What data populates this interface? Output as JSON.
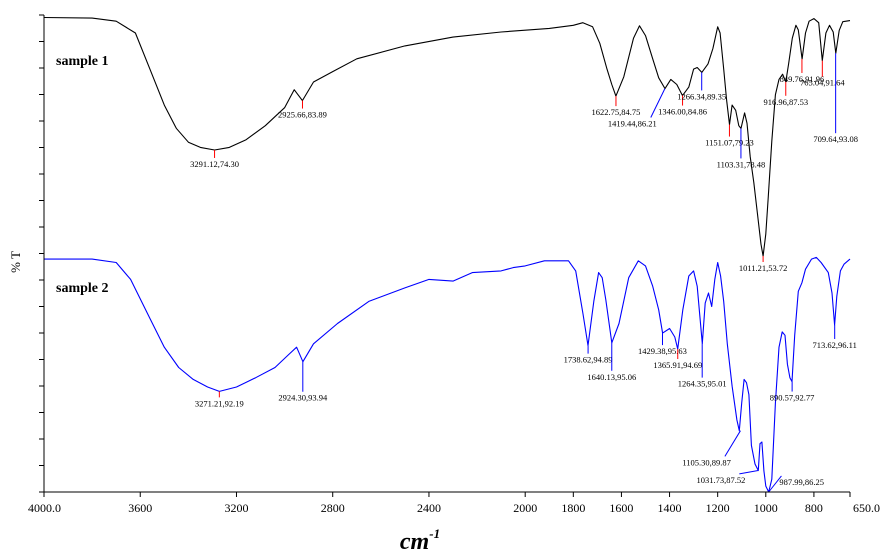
{
  "chart_data": {
    "type": "line",
    "xlabel_base": "cm",
    "xlabel_sup": "-1",
    "ylabel": "% T",
    "xlim": [
      4000.0,
      650.0
    ],
    "x_ticks": [
      {
        "value": 4000,
        "label": "4000.0"
      },
      {
        "value": 3600,
        "label": "3600"
      },
      {
        "value": 3200,
        "label": "3200"
      },
      {
        "value": 2800,
        "label": "2800"
      },
      {
        "value": 2400,
        "label": "2400"
      },
      {
        "value": 2000,
        "label": "2000"
      },
      {
        "value": 1800,
        "label": "1800"
      },
      {
        "value": 1600,
        "label": "1600"
      },
      {
        "value": 1400,
        "label": "1400"
      },
      {
        "value": 1200,
        "label": "1200"
      },
      {
        "value": 1000,
        "label": "1000"
      },
      {
        "value": 800,
        "label": "800"
      },
      {
        "value": 650,
        "label": "650.0"
      }
    ],
    "series": [
      {
        "name": "sample 1",
        "color": "#000000",
        "ylim": [
          53.72,
          100.3
        ],
        "points": [
          [
            4000,
            100
          ],
          [
            3800,
            99.9
          ],
          [
            3700,
            99.3
          ],
          [
            3620,
            97
          ],
          [
            3560,
            90
          ],
          [
            3500,
            83
          ],
          [
            3450,
            78.5
          ],
          [
            3400,
            75.8
          ],
          [
            3350,
            74.8
          ],
          [
            3291,
            74.3
          ],
          [
            3230,
            74.8
          ],
          [
            3160,
            76.3
          ],
          [
            3080,
            79
          ],
          [
            3000,
            82.5
          ],
          [
            2960,
            86
          ],
          [
            2926,
            83.89
          ],
          [
            2880,
            87.5
          ],
          [
            2800,
            89.5
          ],
          [
            2700,
            92
          ],
          [
            2500,
            94.5
          ],
          [
            2300,
            96.2
          ],
          [
            2100,
            97.2
          ],
          [
            1900,
            97.9
          ],
          [
            1800,
            98.5
          ],
          [
            1760,
            99
          ],
          [
            1720,
            98.2
          ],
          [
            1690,
            95
          ],
          [
            1660,
            90
          ],
          [
            1640,
            87
          ],
          [
            1623,
            84.75
          ],
          [
            1590,
            88.5
          ],
          [
            1550,
            96
          ],
          [
            1525,
            98.4
          ],
          [
            1500,
            96.5
          ],
          [
            1470,
            92
          ],
          [
            1445,
            88.3
          ],
          [
            1419,
            86.21
          ],
          [
            1395,
            88
          ],
          [
            1370,
            87
          ],
          [
            1346,
            84.86
          ],
          [
            1320,
            86.5
          ],
          [
            1300,
            90
          ],
          [
            1285,
            90.3
          ],
          [
            1266,
            89.35
          ],
          [
            1240,
            91
          ],
          [
            1220,
            94
          ],
          [
            1200,
            98.2
          ],
          [
            1190,
            97
          ],
          [
            1175,
            90
          ],
          [
            1163,
            84
          ],
          [
            1151,
            79.23
          ],
          [
            1140,
            83
          ],
          [
            1125,
            82
          ],
          [
            1112,
            79
          ],
          [
            1103,
            78.48
          ],
          [
            1088,
            81.5
          ],
          [
            1078,
            79.5
          ],
          [
            1065,
            73
          ],
          [
            1050,
            68
          ],
          [
            1035,
            62
          ],
          [
            1020,
            56
          ],
          [
            1011,
            53.72
          ],
          [
            1000,
            58
          ],
          [
            990,
            65
          ],
          [
            975,
            76
          ],
          [
            960,
            85
          ],
          [
            945,
            88
          ],
          [
            930,
            89
          ],
          [
            917,
            87.53
          ],
          [
            905,
            91
          ],
          [
            890,
            96
          ],
          [
            875,
            98.5
          ],
          [
            865,
            97.6
          ],
          [
            849,
            91.96
          ],
          [
            835,
            97
          ],
          [
            820,
            99.3
          ],
          [
            800,
            99.8
          ],
          [
            780,
            99
          ],
          [
            765,
            91.64
          ],
          [
            750,
            97
          ],
          [
            735,
            98.5
          ],
          [
            720,
            97.2
          ],
          [
            709,
            93.08
          ],
          [
            695,
            97.5
          ],
          [
            680,
            99.2
          ],
          [
            650,
            99.4
          ]
        ]
      },
      {
        "name": "sample 2",
        "color": "#0000ff",
        "ylim": [
          86.25,
          100.3
        ],
        "points": [
          [
            4000,
            100
          ],
          [
            3800,
            100
          ],
          [
            3700,
            99.8
          ],
          [
            3640,
            98.8
          ],
          [
            3560,
            96.5
          ],
          [
            3500,
            94.8
          ],
          [
            3440,
            93.6
          ],
          [
            3380,
            92.9
          ],
          [
            3320,
            92.45
          ],
          [
            3271,
            92.19
          ],
          [
            3200,
            92.45
          ],
          [
            3120,
            93
          ],
          [
            3040,
            93.6
          ],
          [
            2980,
            94.4
          ],
          [
            2950,
            94.8
          ],
          [
            2924,
            93.94
          ],
          [
            2880,
            95
          ],
          [
            2780,
            96.2
          ],
          [
            2650,
            97.5
          ],
          [
            2500,
            98.3
          ],
          [
            2400,
            98.8
          ],
          [
            2300,
            98.7
          ],
          [
            2220,
            99.2
          ],
          [
            2100,
            99.3
          ],
          [
            2050,
            99.5
          ],
          [
            2000,
            99.6
          ],
          [
            1920,
            99.9
          ],
          [
            1820,
            99.9
          ],
          [
            1790,
            99.3
          ],
          [
            1760,
            96.8
          ],
          [
            1739,
            94.89
          ],
          [
            1715,
            97.5
          ],
          [
            1695,
            99.2
          ],
          [
            1680,
            98.9
          ],
          [
            1665,
            97.6
          ],
          [
            1640,
            95.06
          ],
          [
            1610,
            96.2
          ],
          [
            1570,
            98.9
          ],
          [
            1530,
            99.9
          ],
          [
            1500,
            99.6
          ],
          [
            1470,
            98.4
          ],
          [
            1445,
            97
          ],
          [
            1429,
            95.63
          ],
          [
            1400,
            95.9
          ],
          [
            1378,
            95.4
          ],
          [
            1366,
            94.69
          ],
          [
            1345,
            97
          ],
          [
            1320,
            99
          ],
          [
            1300,
            99.3
          ],
          [
            1285,
            98.4
          ],
          [
            1275,
            96.8
          ],
          [
            1264,
            95.01
          ],
          [
            1252,
            97.4
          ],
          [
            1238,
            98
          ],
          [
            1225,
            97.2
          ],
          [
            1212,
            98.8
          ],
          [
            1200,
            99.8
          ],
          [
            1188,
            99
          ],
          [
            1175,
            97.5
          ],
          [
            1160,
            95
          ],
          [
            1140,
            92.5
          ],
          [
            1120,
            90.5
          ],
          [
            1110,
            89.87
          ],
          [
            1100,
            91.5
          ],
          [
            1090,
            92.9
          ],
          [
            1080,
            92.7
          ],
          [
            1070,
            92
          ],
          [
            1060,
            89
          ],
          [
            1045,
            87.9
          ],
          [
            1031,
            87.52
          ],
          [
            1024,
            89.1
          ],
          [
            1016,
            89.2
          ],
          [
            1008,
            87.5
          ],
          [
            1000,
            86.6
          ],
          [
            988,
            86.25
          ],
          [
            975,
            87
          ],
          [
            960,
            91.5
          ],
          [
            945,
            94.8
          ],
          [
            932,
            95.7
          ],
          [
            920,
            95.5
          ],
          [
            910,
            93.8
          ],
          [
            900,
            93
          ],
          [
            891,
            92.77
          ],
          [
            880,
            95.5
          ],
          [
            865,
            98.1
          ],
          [
            850,
            98.6
          ],
          [
            835,
            99.4
          ],
          [
            810,
            100
          ],
          [
            790,
            100.1
          ],
          [
            770,
            99.8
          ],
          [
            740,
            99.2
          ],
          [
            725,
            98
          ],
          [
            714,
            96.11
          ],
          [
            705,
            97.8
          ],
          [
            690,
            99.3
          ],
          [
            675,
            99.7
          ],
          [
            650,
            100
          ]
        ]
      }
    ],
    "annotations": [
      {
        "series": 0,
        "x": 3291.12,
        "y": 74.3,
        "label": "3291.12,74.30",
        "marker": "#ff0000",
        "dir": "down",
        "len": 8
      },
      {
        "series": 0,
        "x": 2925.66,
        "y": 83.89,
        "label": "2925.66,83.89",
        "marker": "#ff0000",
        "dir": "down",
        "len": 8
      },
      {
        "series": 0,
        "x": 1622.75,
        "y": 84.75,
        "label": "1622.75,84.75",
        "marker": "#ff0000",
        "dir": "down",
        "len": 10
      },
      {
        "series": 0,
        "x": 1419.44,
        "y": 86.21,
        "label": "1419.44,86.21",
        "marker": "#0000ff",
        "dir": "leader",
        "lx": 1478,
        "ly": 80.6
      },
      {
        "series": 0,
        "x": 1346.0,
        "y": 84.86,
        "label": "1346.00,84.86",
        "marker": "#ff0000",
        "dir": "down",
        "len": 10
      },
      {
        "series": 0,
        "x": 1266.34,
        "y": 89.35,
        "label": "1266.34,89.35",
        "marker": "#0000ff",
        "dir": "down",
        "len": 18
      },
      {
        "series": 0,
        "x": 1151.07,
        "y": 79.23,
        "label": "1151.07,79.23",
        "marker": "#ff0000",
        "dir": "down",
        "len": 12
      },
      {
        "series": 0,
        "x": 1103.31,
        "y": 78.48,
        "label": "1103.31,78.48",
        "marker": "#0000ff",
        "dir": "down",
        "len": 30
      },
      {
        "series": 0,
        "x": 1011.21,
        "y": 53.72,
        "label": "1011.21,53.72",
        "marker": "#ff0000",
        "dir": "down",
        "len": 6
      },
      {
        "series": 0,
        "x": 916.96,
        "y": 87.53,
        "label": "916.96,87.53",
        "marker": "#ff0000",
        "dir": "down",
        "len": 14
      },
      {
        "series": 0,
        "x": 849.76,
        "y": 91.96,
        "label": "849.76,91.96",
        "marker": "#ff0000",
        "dir": "down",
        "len": 14
      },
      {
        "series": 0,
        "x": 765.04,
        "y": 91.64,
        "label": "765.04,91.64",
        "marker": "#ff0000",
        "dir": "down",
        "len": 16
      },
      {
        "series": 0,
        "x": 709.64,
        "y": 93.08,
        "label": "709.64,93.08",
        "marker": "#0000ff",
        "dir": "down",
        "len": 80
      },
      {
        "series": 1,
        "x": 3271.21,
        "y": 92.19,
        "label": "3271.21,92.19",
        "marker": "#ff0000",
        "dir": "down",
        "len": 6
      },
      {
        "series": 1,
        "x": 2924.3,
        "y": 93.94,
        "label": "2924.30,93.94",
        "marker": "#0000ff",
        "dir": "down",
        "len": 30
      },
      {
        "series": 1,
        "x": 1738.62,
        "y": 94.89,
        "label": "1738.62,94.89",
        "marker": "#0000ff",
        "dir": "down",
        "len": 8
      },
      {
        "series": 1,
        "x": 1640.13,
        "y": 95.06,
        "label": "1640.13,95.06",
        "marker": "#0000ff",
        "dir": "down",
        "len": 28
      },
      {
        "series": 1,
        "x": 1429.38,
        "y": 95.63,
        "label": "1429.38,95.63",
        "marker": "#0000ff",
        "dir": "down",
        "len": 12
      },
      {
        "series": 1,
        "x": 1365.91,
        "y": 94.69,
        "label": "1365.91,94.69",
        "marker": "#ff0000",
        "dir": "down",
        "len": 10
      },
      {
        "series": 1,
        "x": 1264.35,
        "y": 95.01,
        "label": "1264.35,95.01",
        "marker": "#0000ff",
        "dir": "down",
        "len": 34
      },
      {
        "series": 1,
        "x": 1105.3,
        "y": 89.87,
        "label": "1105.30,89.87",
        "marker": "#0000ff",
        "dir": "leader",
        "lx": 1170,
        "ly": 88.35
      },
      {
        "series": 1,
        "x": 1031.73,
        "y": 87.52,
        "label": "1031.73,87.52",
        "marker": "#0000ff",
        "dir": "leader",
        "lx": 1110,
        "ly": 87.32
      },
      {
        "series": 1,
        "x": 987.99,
        "y": 86.25,
        "label": "987.99,86.25",
        "marker": "#0000ff",
        "dir": "leader",
        "lx": 935,
        "ly": 87.2
      },
      {
        "series": 1,
        "x": 890.57,
        "y": 92.77,
        "label": "890.57,92.77",
        "marker": "#0000ff",
        "dir": "down",
        "len": 10
      },
      {
        "series": 1,
        "x": 713.62,
        "y": 96.11,
        "label": "713.62,96.11",
        "marker": "#0000ff",
        "dir": "down",
        "len": 14
      }
    ],
    "grid": false,
    "legend": "none"
  }
}
